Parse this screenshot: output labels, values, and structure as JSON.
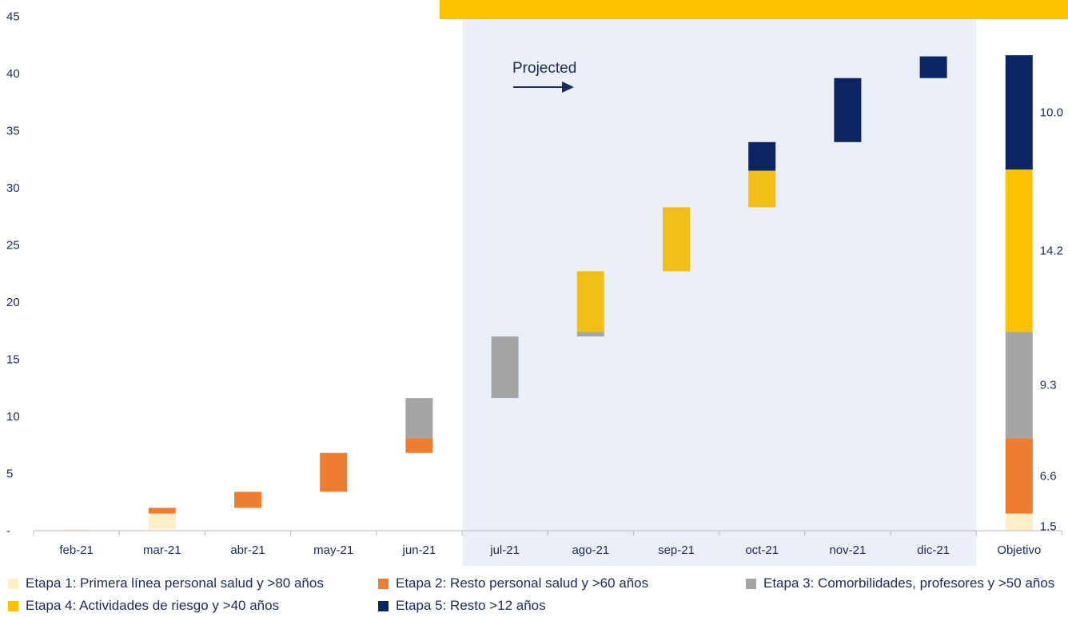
{
  "chart_data": {
    "type": "bar",
    "subtype": "waterfall-stacked",
    "categories": [
      "feb-21",
      "mar-21",
      "abr-21",
      "may-21",
      "jun-21",
      "jul-21",
      "ago-21",
      "sep-21",
      "oct-21",
      "nov-21",
      "dic-21",
      "Objetivo"
    ],
    "ylim": [
      0,
      45
    ],
    "yticks": [
      "-",
      "5",
      "10",
      "15",
      "20",
      "25",
      "30",
      "35",
      "40",
      "45"
    ],
    "series": [
      {
        "name": "Etapa 1: Primera línea personal salud y >80 años",
        "color": "#fdf0c8",
        "values": [
          0.1,
          1.4,
          0,
          0,
          0,
          0,
          0,
          0,
          0,
          0,
          0,
          1.5
        ]
      },
      {
        "name": "Etapa 2: Resto personal salud y >60 años",
        "color": "#ed7d31",
        "values": [
          0,
          0.5,
          1.4,
          3.4,
          1.3,
          0,
          0,
          0,
          0,
          0,
          0,
          6.6
        ]
      },
      {
        "name": "Etapa 3: Comorbilidades, profesores y >50 años",
        "color": "#a5a5a5",
        "values": [
          0,
          0,
          0,
          0,
          3.5,
          5.4,
          0.4,
          0,
          0,
          0,
          0,
          9.3
        ]
      },
      {
        "name": "Etapa 4: Actividades de riesgo y >40 años",
        "color": "#f2bf17",
        "values": [
          0,
          0,
          0,
          0,
          0,
          0,
          5.3,
          5.6,
          3.2,
          0,
          0,
          14.2
        ]
      },
      {
        "name": "Etapa 5: Resto >12 años",
        "color": "#0c2461",
        "values": [
          0,
          0,
          0,
          0,
          0,
          0,
          0,
          0,
          2.5,
          5.6,
          1.9,
          10.0
        ]
      }
    ],
    "data_labels": [
      "1.5",
      "6.6",
      "9.3",
      "14.2",
      "10.0"
    ],
    "projected_label": "Projected",
    "projected_from": "jul-21",
    "projected_to": "dic-21",
    "colors": {
      "projected_bg": "#eaeff8",
      "top_bar": "#fdc100",
      "axis": "#b8b8b8",
      "text": "#1b2a5a",
      "objetivo_etapa4": "#fdc100"
    }
  },
  "legend": {
    "items": [
      {
        "label": "Etapa 1: Primera línea personal salud y >80 años",
        "color": "#fdf0c8"
      },
      {
        "label": "Etapa 2: Resto personal salud y >60 años",
        "color": "#ed7d31"
      },
      {
        "label": "Etapa 3: Comorbilidades, profesores y >50 años",
        "color": "#a5a5a5"
      },
      {
        "label": "Etapa 4: Actividades de riesgo y >40 años",
        "color": "#fdc100"
      },
      {
        "label": "Etapa 5: Resto >12 años",
        "color": "#0c2461"
      }
    ]
  }
}
